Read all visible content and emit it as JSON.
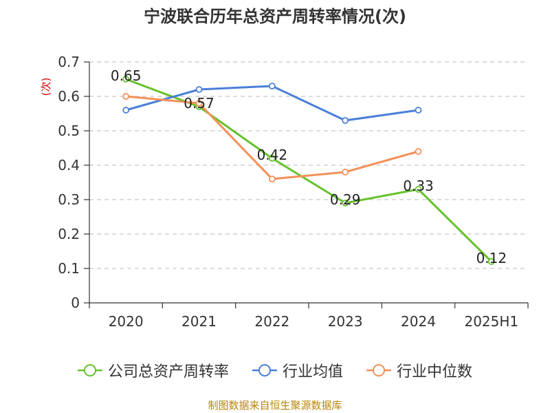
{
  "chart_data": {
    "type": "line",
    "title": "宁波联合历年总资产周转率情况(次)",
    "ylabel": "(次)",
    "xlabel": "",
    "categories": [
      "2020",
      "2021",
      "2022",
      "2023",
      "2024",
      "2025H1"
    ],
    "yticks": [
      "0",
      "0.1",
      "0.2",
      "0.3",
      "0.4",
      "0.5",
      "0.6",
      "0.7"
    ],
    "ylim": [
      0,
      0.7
    ],
    "grid": true,
    "legend_position": "bottom",
    "series": [
      {
        "name": "公司总资产周转率",
        "color": "#66c22b",
        "values": [
          0.65,
          0.57,
          0.42,
          0.29,
          0.33,
          0.12
        ],
        "labels": [
          "0.65",
          "0.57",
          "0.42",
          "0.29",
          "0.33",
          "0.12"
        ]
      },
      {
        "name": "行业均值",
        "color": "#4a7fd8",
        "values": [
          0.56,
          0.62,
          0.63,
          0.53,
          0.56,
          null
        ]
      },
      {
        "name": "行业中位数",
        "color": "#f39058",
        "values": [
          0.6,
          0.58,
          0.36,
          0.38,
          0.44,
          null
        ]
      }
    ]
  },
  "source_note": "制图数据来自恒生聚源数据库"
}
